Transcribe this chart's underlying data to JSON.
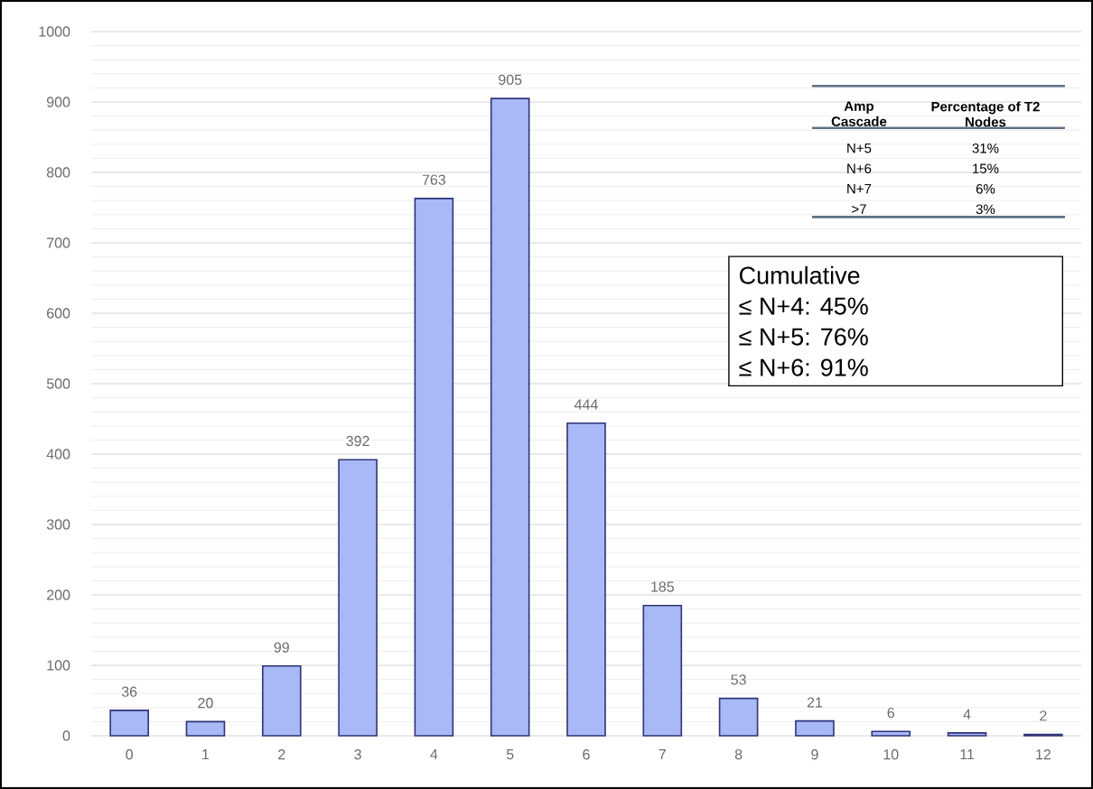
{
  "chart_data": {
    "type": "bar",
    "categories": [
      "0",
      "1",
      "2",
      "3",
      "4",
      "5",
      "6",
      "7",
      "8",
      "9",
      "10",
      "11",
      "12"
    ],
    "values": [
      36,
      20,
      99,
      392,
      763,
      905,
      444,
      185,
      53,
      21,
      6,
      4,
      2
    ],
    "color": "#a9b8f7",
    "ylim": [
      0,
      1000
    ],
    "yticks": [
      0,
      100,
      200,
      300,
      400,
      500,
      600,
      700,
      800,
      900,
      1000
    ],
    "grid": "y",
    "data_labels": true,
    "annotations": [
      "Amp Cascade",
      "Percentage of T2 Nodes",
      "N+5",
      "31%",
      "N+6",
      "15%",
      "N+7",
      "6%",
      ">7",
      "3%",
      "Cumulative",
      "≤   N+4: 45%",
      "≤   N+5: 76%",
      "≤   N+6: 91%"
    ]
  }
}
